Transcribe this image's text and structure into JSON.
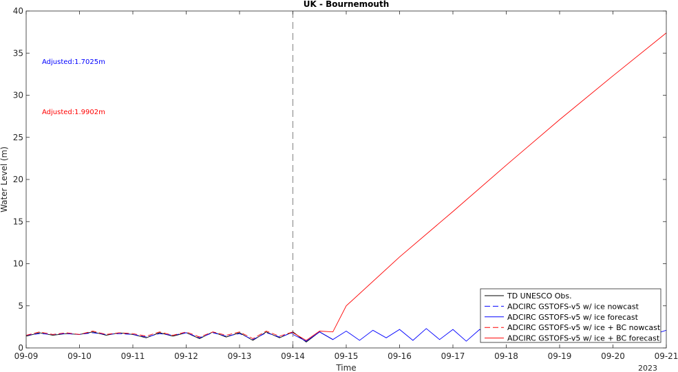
{
  "chart_data": {
    "type": "line",
    "title": "UK - Bournemouth",
    "xlabel": "Time",
    "ylabel": "Water Level (m)",
    "year_label": "2023",
    "x_ticks": [
      "09-09",
      "09-10",
      "09-11",
      "09-12",
      "09-13",
      "09-14",
      "09-15",
      "09-16",
      "09-17",
      "09-18",
      "09-19",
      "09-20",
      "09-21"
    ],
    "xlim": [
      "2023-09-09",
      "2023-09-21"
    ],
    "ylim": [
      0,
      40
    ],
    "y_ticks": [
      0,
      5,
      10,
      15,
      20,
      25,
      30,
      35,
      40
    ],
    "nowcast_forecast_divider": "2023-09-14",
    "grid": false,
    "legend_position": "bottom-right",
    "annotations": [
      {
        "text": "Adjusted:1.7025m",
        "color": "#0000ff"
      },
      {
        "text": "Adjusted:1.9902m",
        "color": "#ff0000"
      }
    ],
    "series": [
      {
        "name": "TD UNESCO Obs.",
        "color": "#000000",
        "dash": "solid",
        "x": [
          "2023-09-09 00:00",
          "2023-09-09 06:00",
          "2023-09-09 12:00",
          "2023-09-09 18:00",
          "2023-09-10 00:00",
          "2023-09-10 06:00",
          "2023-09-10 12:00",
          "2023-09-10 18:00",
          "2023-09-11 00:00",
          "2023-09-11 06:00",
          "2023-09-11 12:00",
          "2023-09-11 18:00",
          "2023-09-12 00:00",
          "2023-09-12 06:00",
          "2023-09-12 12:00",
          "2023-09-12 18:00",
          "2023-09-13 00:00",
          "2023-09-13 06:00",
          "2023-09-13 12:00",
          "2023-09-13 18:00",
          "2023-09-14 00:00",
          "2023-09-14 06:00",
          "2023-09-14 12:00",
          "2023-09-14 18:00"
        ],
        "y": [
          1.4,
          1.8,
          1.5,
          1.7,
          1.6,
          1.9,
          1.5,
          1.8,
          1.6,
          1.2,
          1.8,
          1.4,
          1.8,
          1.1,
          1.9,
          1.3,
          1.8,
          0.9,
          1.9,
          1.2,
          1.9,
          0.7,
          1.9,
          1.0
        ]
      },
      {
        "name": "ADCIRC GSTOFS-v5 w/ ice nowcast",
        "color": "#0000ff",
        "dash": "dashed",
        "x": [
          "2023-09-09 00:00",
          "2023-09-09 06:00",
          "2023-09-09 12:00",
          "2023-09-09 18:00",
          "2023-09-10 00:00",
          "2023-09-10 06:00",
          "2023-09-10 12:00",
          "2023-09-10 18:00",
          "2023-09-11 00:00",
          "2023-09-11 06:00",
          "2023-09-11 12:00",
          "2023-09-11 18:00",
          "2023-09-12 00:00",
          "2023-09-12 06:00",
          "2023-09-12 12:00",
          "2023-09-12 18:00",
          "2023-09-13 00:00",
          "2023-09-13 06:00",
          "2023-09-13 12:00",
          "2023-09-13 18:00",
          "2023-09-14 00:00"
        ],
        "y": [
          1.5,
          1.7,
          1.6,
          1.7,
          1.6,
          1.8,
          1.6,
          1.7,
          1.6,
          1.3,
          1.7,
          1.5,
          1.8,
          1.2,
          1.8,
          1.4,
          1.7,
          1.0,
          1.8,
          1.3,
          1.8
        ]
      },
      {
        "name": "ADCIRC GSTOFS-v5 w/ ice forecast",
        "color": "#0000ff",
        "dash": "solid",
        "x": [
          "2023-09-14 00:00",
          "2023-09-14 06:00",
          "2023-09-14 12:00",
          "2023-09-14 18:00",
          "2023-09-15 00:00",
          "2023-09-15 06:00",
          "2023-09-15 12:00",
          "2023-09-15 18:00",
          "2023-09-16 00:00",
          "2023-09-16 06:00",
          "2023-09-16 12:00",
          "2023-09-16 18:00",
          "2023-09-17 00:00",
          "2023-09-17 06:00",
          "2023-09-17 12:00",
          "2023-09-17 18:00",
          "2023-09-18 00:00",
          "2023-09-18 06:00",
          "2023-09-18 12:00",
          "2023-09-18 18:00",
          "2023-09-19 00:00",
          "2023-09-19 06:00",
          "2023-09-19 12:00",
          "2023-09-19 18:00",
          "2023-09-20 00:00",
          "2023-09-20 06:00",
          "2023-09-20 12:00",
          "2023-09-20 18:00",
          "2023-09-21 00:00"
        ],
        "y": [
          1.6,
          0.8,
          1.9,
          1.0,
          2.0,
          0.9,
          2.1,
          1.2,
          2.2,
          0.9,
          2.3,
          1.0,
          2.2,
          0.8,
          2.2,
          1.0,
          2.2,
          1.1,
          2.1,
          1.2,
          2.0,
          1.3,
          2.0,
          1.4,
          2.1,
          1.5,
          2.1,
          1.6,
          2.1
        ]
      },
      {
        "name": "ADCIRC GSTOFS-v5 w/ ice + BC nowcast",
        "color": "#ff0000",
        "dash": "dashed",
        "x": [
          "2023-09-09 00:00",
          "2023-09-09 06:00",
          "2023-09-09 12:00",
          "2023-09-09 18:00",
          "2023-09-10 00:00",
          "2023-09-10 06:00",
          "2023-09-10 12:00",
          "2023-09-10 18:00",
          "2023-09-11 00:00",
          "2023-09-11 06:00",
          "2023-09-11 12:00",
          "2023-09-11 18:00",
          "2023-09-12 00:00",
          "2023-09-12 06:00",
          "2023-09-12 12:00",
          "2023-09-12 18:00",
          "2023-09-13 00:00",
          "2023-09-13 06:00",
          "2023-09-13 12:00",
          "2023-09-13 18:00",
          "2023-09-14 00:00"
        ],
        "y": [
          1.5,
          1.9,
          1.6,
          1.8,
          1.6,
          2.0,
          1.6,
          1.8,
          1.7,
          1.4,
          1.9,
          1.5,
          1.9,
          1.3,
          1.9,
          1.5,
          1.9,
          1.1,
          2.0,
          1.4,
          1.9
        ]
      },
      {
        "name": "ADCIRC GSTOFS-v5 w/ ice + BC forecast",
        "color": "#ff0000",
        "dash": "solid",
        "x": [
          "2023-09-14 00:00",
          "2023-09-14 06:00",
          "2023-09-14 12:00",
          "2023-09-14 18:00",
          "2023-09-15 00:00",
          "2023-09-16 00:00",
          "2023-09-17 00:00",
          "2023-09-18 00:00",
          "2023-09-19 00:00",
          "2023-09-20 00:00",
          "2023-09-21 00:00"
        ],
        "y": [
          1.8,
          0.9,
          2.0,
          1.9,
          5.0,
          10.8,
          16.2,
          21.7,
          27.1,
          32.3,
          37.4
        ]
      }
    ]
  }
}
